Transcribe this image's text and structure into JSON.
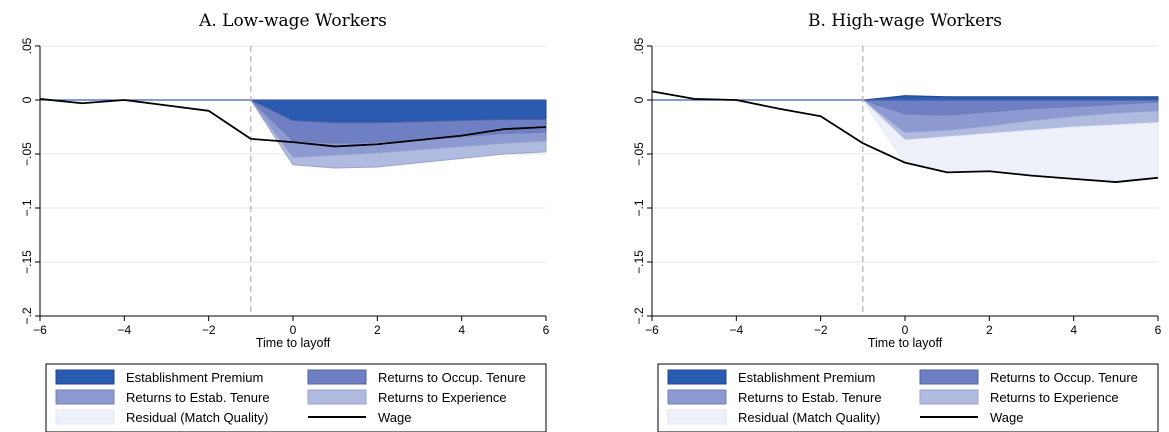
{
  "chart_data": [
    {
      "type": "area",
      "title": "A. Low-wage Workers",
      "xlabel": "Time to layoff",
      "ylabel": "",
      "xlim": [
        -6,
        6
      ],
      "ylim": [
        -0.2,
        0.05
      ],
      "xticks": [
        -6,
        -4,
        -2,
        0,
        2,
        4,
        6
      ],
      "xtick_labels": [
        "−6",
        "−4",
        "−2",
        "0",
        "2",
        "4",
        "6"
      ],
      "yticks": [
        0.05,
        0,
        -0.05,
        -0.1,
        -0.15,
        -0.2
      ],
      "ytick_labels": [
        ".05",
        "0",
        "−.05",
        "−.1",
        "−.15",
        "−.2"
      ],
      "vline": -1,
      "baseline": 0,
      "grid": true,
      "legend": "below",
      "x_bands": [
        -1,
        0,
        1,
        2,
        3,
        4,
        5,
        6
      ],
      "bands": [
        {
          "name": "Establishment Premium",
          "lower": [
            0,
            -0.019,
            -0.021,
            -0.021,
            -0.02,
            -0.019,
            -0.018,
            -0.018
          ]
        },
        {
          "name": "Returns to Occup. Tenure",
          "lower": [
            0,
            -0.038,
            -0.04,
            -0.039,
            -0.037,
            -0.034,
            -0.031,
            -0.03
          ]
        },
        {
          "name": "Returns to Estab. Tenure",
          "lower": [
            0,
            -0.053,
            -0.051,
            -0.049,
            -0.046,
            -0.043,
            -0.04,
            -0.038
          ]
        },
        {
          "name": "Returns to Experience",
          "lower": [
            0,
            -0.06,
            -0.063,
            -0.062,
            -0.058,
            -0.054,
            -0.05,
            -0.048
          ]
        }
      ],
      "wage": {
        "name": "Wage",
        "x": [
          -6,
          -5,
          -4,
          -3,
          -2,
          -1,
          0,
          1,
          2,
          3,
          4,
          5,
          6
        ],
        "y": [
          0.001,
          -0.003,
          0.0,
          -0.005,
          -0.01,
          -0.036,
          -0.039,
          -0.043,
          -0.041,
          -0.037,
          -0.033,
          -0.027,
          -0.025
        ]
      }
    },
    {
      "type": "area",
      "title": "B. High-wage Workers",
      "xlabel": "Time to layoff",
      "ylabel": "",
      "xlim": [
        -6,
        6
      ],
      "ylim": [
        -0.2,
        0.05
      ],
      "xticks": [
        -6,
        -4,
        -2,
        0,
        2,
        4,
        6
      ],
      "xtick_labels": [
        "−6",
        "−4",
        "−2",
        "0",
        "2",
        "4",
        "6"
      ],
      "yticks": [
        0.05,
        0,
        -0.05,
        -0.1,
        -0.15,
        -0.2
      ],
      "ytick_labels": [
        ".05",
        "0",
        "−.05",
        "−.1",
        "−.15",
        "−.2"
      ],
      "vline": -1,
      "baseline": 0,
      "grid": true,
      "legend": "below",
      "x_bands": [
        -1,
        0,
        1,
        2,
        3,
        4,
        5,
        6
      ],
      "bands": [
        {
          "name": "Establishment Premium",
          "upper": [
            0,
            0.004,
            0.003,
            0.003,
            0.003,
            0.003,
            0.003,
            0.003
          ],
          "lower": [
            0,
            0,
            0,
            0,
            0,
            0,
            0,
            0
          ]
        },
        {
          "name": "Returns to Occup. Tenure",
          "lower": [
            0,
            -0.013,
            -0.014,
            -0.011,
            -0.008,
            -0.006,
            -0.004,
            -0.002
          ]
        },
        {
          "name": "Returns to Estab. Tenure",
          "lower": [
            0,
            -0.03,
            -0.028,
            -0.024,
            -0.019,
            -0.015,
            -0.012,
            -0.01
          ]
        },
        {
          "name": "Returns to Experience",
          "lower": [
            0,
            -0.037,
            -0.034,
            -0.031,
            -0.028,
            -0.025,
            -0.023,
            -0.021
          ]
        },
        {
          "name": "Residual (Match Quality)",
          "lower": [
            0,
            -0.058,
            -0.067,
            -0.066,
            -0.07,
            -0.073,
            -0.076,
            -0.072
          ]
        }
      ],
      "wage": {
        "name": "Wage",
        "x": [
          -6,
          -5,
          -4,
          -3,
          -2,
          -1,
          0,
          1,
          2,
          3,
          4,
          5,
          6
        ],
        "y": [
          0.008,
          0.001,
          0.0,
          -0.008,
          -0.015,
          -0.04,
          -0.058,
          -0.067,
          -0.066,
          -0.07,
          -0.073,
          -0.076,
          -0.072
        ]
      }
    }
  ],
  "legend": {
    "items": [
      {
        "label": "Establishment Premium",
        "kind": "swatch",
        "color": "#2b5bb0",
        "edge": "#1f4694"
      },
      {
        "label": "Returns to Occup. Tenure",
        "kind": "swatch",
        "color": "#6e7fc4",
        "edge": "#52639f"
      },
      {
        "label": "Returns to Estab. Tenure",
        "kind": "swatch",
        "color": "#8d9ad2",
        "edge": "#7480b8"
      },
      {
        "label": "Returns to Experience",
        "kind": "swatch",
        "color": "#b1badf",
        "edge": "#98a3cf"
      },
      {
        "label": "Residual (Match Quality)",
        "kind": "swatch",
        "color": "#eef0fa",
        "edge": "#e2e6f4"
      },
      {
        "label": "Wage",
        "kind": "line",
        "color": "#000000"
      }
    ]
  },
  "colors": {
    "grid": "#e6e6e6",
    "axis": "#000000",
    "vline": "#b5b5b5",
    "baseline": "#3d5fa8",
    "wage": "#000000"
  }
}
